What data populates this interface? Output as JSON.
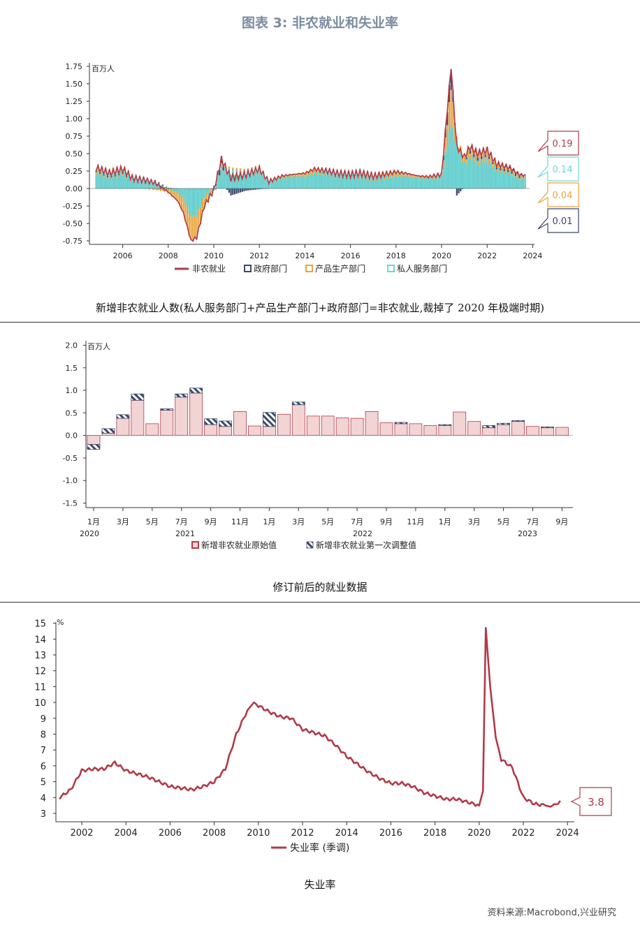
{
  "figure_title": "图表 3:  非农就业和失业率",
  "source": "资料来源:Macrobond,兴业研究",
  "captions": {
    "c1": "新增非农就业人数(私人服务部门+产品生产部门+政府部门=非农就业,裁掉了 2020 年极端时期)",
    "c2": "修订前后的就业数据",
    "c3": "失业率"
  },
  "colors": {
    "red": "#b23a48",
    "navy": "#3a4868",
    "orange": "#e8a33a",
    "cyan": "#6fd6d6",
    "pink": "#f2d4d4"
  },
  "chart_data": [
    {
      "type": "bar",
      "unit": "百万人",
      "ylim": [
        -0.8,
        1.8
      ],
      "yticks": [
        "1.75",
        "1.50",
        "1.25",
        "1.00",
        "0.75",
        "0.50",
        "0.25",
        "0.00",
        "-0.25",
        "-0.50",
        "-0.75"
      ],
      "xticks": [
        "2006",
        "2008",
        "2010",
        "2012",
        "2014",
        "2016",
        "2018",
        "2020",
        "2022",
        "2024"
      ],
      "legend": [
        "非农就业",
        "政府部门",
        "产品生产部门",
        "私人服务部门"
      ],
      "x": [
        "2004-11",
        "2005-06",
        "2006-01",
        "2006-06",
        "2007-01",
        "2007-06",
        "2008-01",
        "2008-06",
        "2008-09",
        "2009-01",
        "2009-04",
        "2009-08",
        "2010-01",
        "2010-05",
        "2010-10",
        "2011-06",
        "2012-01",
        "2012-06",
        "2013-01",
        "2013-06",
        "2014-01",
        "2014-06",
        "2015-01",
        "2015-06",
        "2016-01",
        "2016-06",
        "2017-01",
        "2017-06",
        "2018-01",
        "2018-06",
        "2019-01",
        "2019-06",
        "2020-01",
        "2020-06",
        "2020-09",
        "2021-01",
        "2021-04",
        "2021-08",
        "2022-01",
        "2022-06",
        "2023-01",
        "2023-06",
        "2023-09"
      ],
      "series": [
        {
          "name": "非农就业",
          "values": [
            0.3,
            0.22,
            0.28,
            0.15,
            0.12,
            0.08,
            -0.05,
            -0.18,
            -0.35,
            -0.75,
            -0.7,
            -0.25,
            -0.02,
            0.42,
            0.15,
            0.2,
            0.28,
            0.1,
            0.18,
            0.2,
            0.22,
            0.28,
            0.25,
            0.22,
            0.2,
            0.22,
            0.18,
            0.2,
            0.24,
            0.22,
            0.18,
            0.17,
            0.2,
            1.75,
            0.6,
            0.45,
            0.6,
            0.5,
            0.55,
            0.35,
            0.3,
            0.2,
            0.19
          ]
        },
        {
          "name": "政府部门",
          "values": [
            0.02,
            0.02,
            0.02,
            0.01,
            0.02,
            0.02,
            0.01,
            0.0,
            -0.01,
            0.0,
            -0.01,
            -0.02,
            0.0,
            0.1,
            -0.1,
            -0.03,
            -0.01,
            0.0,
            0.0,
            0.0,
            0.01,
            0.01,
            0.01,
            0.01,
            0.01,
            0.01,
            0.01,
            0.01,
            0.01,
            0.01,
            0.01,
            0.01,
            0.01,
            0.3,
            -0.1,
            0.02,
            0.05,
            0.05,
            0.04,
            0.03,
            0.04,
            0.03,
            0.01
          ]
        },
        {
          "name": "产品生产部门",
          "values": [
            0.05,
            0.03,
            0.04,
            0.02,
            0.0,
            -0.02,
            -0.05,
            -0.12,
            -0.2,
            -0.35,
            -0.3,
            -0.12,
            -0.03,
            0.04,
            0.02,
            0.03,
            0.04,
            0.02,
            0.03,
            0.03,
            0.04,
            0.05,
            0.03,
            0.02,
            0.02,
            0.03,
            0.04,
            0.04,
            0.05,
            0.04,
            0.02,
            0.02,
            0.03,
            0.5,
            0.1,
            0.08,
            0.1,
            0.08,
            0.1,
            0.05,
            0.04,
            0.03,
            0.04
          ]
        },
        {
          "name": "私人服务部门",
          "values": [
            0.23,
            0.17,
            0.22,
            0.12,
            0.1,
            0.08,
            -0.01,
            -0.06,
            -0.14,
            -0.4,
            -0.39,
            -0.11,
            0.01,
            0.28,
            0.23,
            0.2,
            0.25,
            0.08,
            0.15,
            0.17,
            0.17,
            0.22,
            0.21,
            0.19,
            0.17,
            0.18,
            0.13,
            0.15,
            0.18,
            0.17,
            0.15,
            0.14,
            0.16,
            0.95,
            0.6,
            0.35,
            0.45,
            0.37,
            0.41,
            0.27,
            0.22,
            0.14,
            0.14
          ]
        }
      ],
      "end_labels": [
        "0.19",
        "0.14",
        "0.04",
        "0.01"
      ]
    },
    {
      "type": "bar",
      "unit": "百万人",
      "ylim": [
        -1.6,
        2.1
      ],
      "yticks": [
        "2.0",
        "1.5",
        "1.0",
        "0.5",
        "0.0",
        "-0.5",
        "-1.0",
        "-1.5"
      ],
      "xticks": [
        "1月",
        "3月",
        "5月",
        "7月",
        "9月",
        "11月",
        "1月",
        "3月",
        "5月",
        "7月",
        "9月",
        "11月",
        "1月",
        "3月",
        "5月",
        "7月",
        "9月"
      ],
      "year_labels": [
        "2020",
        "2021",
        "2022",
        "2023"
      ],
      "legend": [
        "新增非农就业原始值",
        "新增非农就业第一次调整值"
      ],
      "series": [
        {
          "name": "新增非农就业原始值",
          "values": [
            -0.2,
            0.05,
            0.38,
            0.78,
            0.26,
            0.56,
            0.85,
            0.94,
            0.24,
            0.2,
            0.53,
            0.21,
            0.2,
            0.47,
            0.68,
            0.43,
            0.43,
            0.39,
            0.38,
            0.53,
            0.28,
            0.26,
            0.26,
            0.22,
            0.22,
            0.52,
            0.31,
            0.17,
            0.24,
            0.31,
            0.2,
            0.17,
            0.18
          ]
        },
        {
          "name": "新增非农就业第一次调整值",
          "values": [
            -0.11,
            0.1,
            0.08,
            0.14,
            0.0,
            0.03,
            0.07,
            0.11,
            0.13,
            0.12,
            0.0,
            0.0,
            0.31,
            0.0,
            0.06,
            0.0,
            0.0,
            0.0,
            0.0,
            0.0,
            0.0,
            0.03,
            0.0,
            0.0,
            0.02,
            0.0,
            0.0,
            0.05,
            0.03,
            0.02,
            0.0,
            0.02,
            0.0
          ]
        }
      ]
    },
    {
      "type": "line",
      "unit": "%",
      "ylim": [
        3,
        15
      ],
      "yticks": [
        "15",
        "14",
        "13",
        "12",
        "11",
        "10",
        "9",
        "8",
        "7",
        "6",
        "5",
        "4",
        "3"
      ],
      "xticks": [
        "2002",
        "2004",
        "2006",
        "2008",
        "2010",
        "2012",
        "2014",
        "2016",
        "2018",
        "2020",
        "2022",
        "2024"
      ],
      "legend": [
        "失业率 (季调)"
      ],
      "end_label": "3.8",
      "series": [
        {
          "name": "失业率 (季调)",
          "x": [
            2001.0,
            2001.5,
            2002.0,
            2002.5,
            2003.0,
            2003.5,
            2004.0,
            2004.5,
            2005.0,
            2005.5,
            2006.0,
            2006.5,
            2007.0,
            2007.5,
            2008.0,
            2008.5,
            2009.0,
            2009.5,
            2009.8,
            2010.0,
            2010.5,
            2011.0,
            2011.5,
            2012.0,
            2012.5,
            2013.0,
            2013.5,
            2014.0,
            2014.5,
            2015.0,
            2015.5,
            2016.0,
            2016.5,
            2017.0,
            2017.5,
            2018.0,
            2018.5,
            2019.0,
            2019.5,
            2020.0,
            2020.17,
            2020.3,
            2020.5,
            2020.75,
            2021.0,
            2021.5,
            2022.0,
            2022.5,
            2023.0,
            2023.3,
            2023.67
          ],
          "values": [
            4.0,
            4.5,
            5.7,
            5.8,
            5.8,
            6.2,
            5.7,
            5.5,
            5.3,
            5.0,
            4.7,
            4.6,
            4.5,
            4.7,
            5.0,
            5.8,
            8.0,
            9.5,
            10.0,
            9.8,
            9.4,
            9.1,
            9.0,
            8.3,
            8.1,
            7.9,
            7.3,
            6.6,
            6.1,
            5.6,
            5.2,
            4.9,
            4.9,
            4.7,
            4.3,
            4.1,
            3.9,
            3.9,
            3.7,
            3.5,
            4.4,
            14.7,
            11.0,
            7.8,
            6.4,
            5.9,
            4.0,
            3.6,
            3.5,
            3.4,
            3.8
          ]
        }
      ]
    }
  ]
}
